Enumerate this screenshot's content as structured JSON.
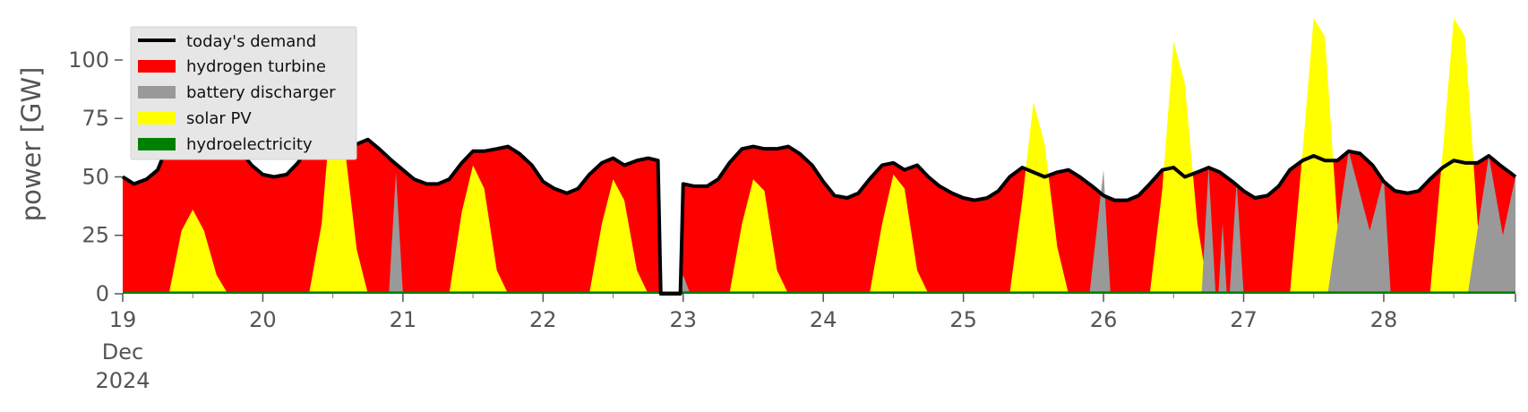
{
  "chart_data": {
    "type": "area",
    "xlabel": "",
    "ylabel": "power [GW]",
    "xlim": [
      19.0,
      28.94
    ],
    "ylim": [
      0,
      118
    ],
    "x_ticks": [
      {
        "x": 19,
        "label": "19"
      },
      {
        "x": 20,
        "label": "20"
      },
      {
        "x": 21,
        "label": "21"
      },
      {
        "x": 22,
        "label": "22"
      },
      {
        "x": 23,
        "label": "23"
      },
      {
        "x": 24,
        "label": "24"
      },
      {
        "x": 25,
        "label": "25"
      },
      {
        "x": 26,
        "label": "26"
      },
      {
        "x": 27,
        "label": "27"
      },
      {
        "x": 28,
        "label": "28"
      }
    ],
    "x_sublabel_month": "Dec",
    "x_sublabel_year": "2024",
    "y_ticks": [
      0,
      25,
      50,
      75,
      100
    ],
    "legend_position": "top-left",
    "grid": false,
    "series": [
      {
        "name": "today's demand",
        "kind": "line",
        "color": "#000000",
        "points": [
          [
            19.0,
            50
          ],
          [
            19.08,
            47
          ],
          [
            19.17,
            49
          ],
          [
            19.25,
            53
          ],
          [
            19.33,
            65
          ],
          [
            19.42,
            70
          ],
          [
            19.5,
            71
          ],
          [
            19.58,
            70
          ],
          [
            19.67,
            68
          ],
          [
            19.75,
            66
          ],
          [
            19.83,
            62
          ],
          [
            19.92,
            55
          ],
          [
            20.0,
            51
          ],
          [
            20.08,
            50
          ],
          [
            20.17,
            51
          ],
          [
            20.25,
            56
          ],
          [
            20.33,
            63
          ],
          [
            20.42,
            68
          ],
          [
            20.5,
            68
          ],
          [
            20.58,
            66
          ],
          [
            20.67,
            64
          ],
          [
            20.75,
            66
          ],
          [
            20.83,
            62
          ],
          [
            20.92,
            57
          ],
          [
            21.0,
            53
          ],
          [
            21.08,
            49
          ],
          [
            21.17,
            47
          ],
          [
            21.25,
            47
          ],
          [
            21.33,
            49
          ],
          [
            21.42,
            56
          ],
          [
            21.5,
            61
          ],
          [
            21.58,
            61
          ],
          [
            21.67,
            62
          ],
          [
            21.75,
            63
          ],
          [
            21.83,
            60
          ],
          [
            21.92,
            55
          ],
          [
            22.0,
            48
          ],
          [
            22.08,
            45
          ],
          [
            22.17,
            43
          ],
          [
            22.25,
            45
          ],
          [
            22.33,
            51
          ],
          [
            22.42,
            56
          ],
          [
            22.5,
            58
          ],
          [
            22.58,
            55
          ],
          [
            22.67,
            57
          ],
          [
            22.75,
            58
          ],
          [
            22.82,
            57
          ],
          [
            22.84,
            0
          ],
          [
            22.98,
            0
          ],
          [
            23.0,
            47
          ],
          [
            23.08,
            46
          ],
          [
            23.17,
            46
          ],
          [
            23.25,
            49
          ],
          [
            23.33,
            56
          ],
          [
            23.42,
            62
          ],
          [
            23.5,
            63
          ],
          [
            23.58,
            62
          ],
          [
            23.67,
            62
          ],
          [
            23.75,
            63
          ],
          [
            23.83,
            60
          ],
          [
            23.92,
            55
          ],
          [
            24.0,
            48
          ],
          [
            24.08,
            42
          ],
          [
            24.17,
            41
          ],
          [
            24.25,
            43
          ],
          [
            24.33,
            49
          ],
          [
            24.42,
            55
          ],
          [
            24.5,
            56
          ],
          [
            24.58,
            53
          ],
          [
            24.67,
            55
          ],
          [
            24.75,
            50
          ],
          [
            24.83,
            46
          ],
          [
            24.92,
            43
          ],
          [
            25.0,
            41
          ],
          [
            25.08,
            40
          ],
          [
            25.17,
            41
          ],
          [
            25.25,
            44
          ],
          [
            25.33,
            50
          ],
          [
            25.42,
            54
          ],
          [
            25.5,
            52
          ],
          [
            25.58,
            50
          ],
          [
            25.67,
            52
          ],
          [
            25.75,
            53
          ],
          [
            25.83,
            50
          ],
          [
            25.92,
            46
          ],
          [
            26.0,
            42
          ],
          [
            26.08,
            40
          ],
          [
            26.17,
            40
          ],
          [
            26.25,
            42
          ],
          [
            26.33,
            47
          ],
          [
            26.42,
            53
          ],
          [
            26.5,
            54
          ],
          [
            26.58,
            50
          ],
          [
            26.67,
            52
          ],
          [
            26.75,
            54
          ],
          [
            26.83,
            52
          ],
          [
            26.92,
            48
          ],
          [
            27.0,
            44
          ],
          [
            27.08,
            41
          ],
          [
            27.17,
            42
          ],
          [
            27.25,
            46
          ],
          [
            27.33,
            53
          ],
          [
            27.42,
            57
          ],
          [
            27.5,
            59
          ],
          [
            27.58,
            57
          ],
          [
            27.67,
            57
          ],
          [
            27.75,
            61
          ],
          [
            27.83,
            60
          ],
          [
            27.92,
            55
          ],
          [
            28.0,
            48
          ],
          [
            28.08,
            44
          ],
          [
            28.17,
            43
          ],
          [
            28.25,
            44
          ],
          [
            28.33,
            49
          ],
          [
            28.42,
            54
          ],
          [
            28.5,
            57
          ],
          [
            28.58,
            56
          ],
          [
            28.67,
            56
          ],
          [
            28.75,
            59
          ],
          [
            28.83,
            55
          ],
          [
            28.92,
            51
          ],
          [
            28.94,
            50
          ]
        ]
      },
      {
        "name": "hydrogen turbine",
        "kind": "area",
        "color": "#ff0000",
        "note_fill": "red fills the remaining stack up to the demand line"
      },
      {
        "name": "battery discharger",
        "kind": "area",
        "color": "#999999",
        "points": [
          [
            20.9,
            0
          ],
          [
            20.95,
            52
          ],
          [
            21.0,
            0
          ],
          [
            22.97,
            0
          ],
          [
            23.0,
            8
          ],
          [
            23.05,
            0
          ],
          [
            25.9,
            0
          ],
          [
            26.0,
            53
          ],
          [
            26.05,
            0
          ],
          [
            26.7,
            0
          ],
          [
            26.75,
            54
          ],
          [
            26.8,
            0
          ],
          [
            26.82,
            0
          ],
          [
            26.85,
            30
          ],
          [
            26.88,
            0
          ],
          [
            26.9,
            0
          ],
          [
            26.95,
            48
          ],
          [
            27.0,
            0
          ],
          [
            27.6,
            0
          ],
          [
            27.75,
            61
          ],
          [
            27.9,
            27
          ],
          [
            28.0,
            50
          ],
          [
            28.05,
            0
          ],
          [
            28.6,
            0
          ],
          [
            28.75,
            59
          ],
          [
            28.85,
            25
          ],
          [
            28.94,
            50
          ]
        ]
      },
      {
        "name": "solar PV",
        "kind": "area",
        "color": "#ffff00",
        "points": [
          [
            19.33,
            0
          ],
          [
            19.42,
            27
          ],
          [
            19.5,
            36
          ],
          [
            19.58,
            27
          ],
          [
            19.67,
            8
          ],
          [
            19.75,
            0
          ],
          [
            20.33,
            0
          ],
          [
            20.42,
            30
          ],
          [
            20.5,
            88
          ],
          [
            20.58,
            65
          ],
          [
            20.67,
            19
          ],
          [
            20.75,
            0
          ],
          [
            21.33,
            0
          ],
          [
            21.42,
            35
          ],
          [
            21.5,
            55
          ],
          [
            21.58,
            45
          ],
          [
            21.67,
            10
          ],
          [
            21.75,
            0
          ],
          [
            22.33,
            0
          ],
          [
            22.42,
            30
          ],
          [
            22.5,
            49
          ],
          [
            22.58,
            40
          ],
          [
            22.67,
            10
          ],
          [
            22.75,
            0
          ],
          [
            23.33,
            0
          ],
          [
            23.42,
            30
          ],
          [
            23.5,
            49
          ],
          [
            23.58,
            44
          ],
          [
            23.67,
            10
          ],
          [
            23.75,
            0
          ],
          [
            24.33,
            0
          ],
          [
            24.42,
            30
          ],
          [
            24.5,
            51
          ],
          [
            24.58,
            45
          ],
          [
            24.67,
            10
          ],
          [
            24.75,
            0
          ],
          [
            25.33,
            0
          ],
          [
            25.42,
            40
          ],
          [
            25.5,
            82
          ],
          [
            25.58,
            64
          ],
          [
            25.67,
            20
          ],
          [
            25.75,
            0
          ],
          [
            26.33,
            0
          ],
          [
            26.42,
            45
          ],
          [
            26.5,
            108
          ],
          [
            26.58,
            90
          ],
          [
            26.67,
            30
          ],
          [
            26.75,
            0
          ],
          [
            27.33,
            0
          ],
          [
            27.42,
            60
          ],
          [
            27.5,
            130
          ],
          [
            27.58,
            110
          ],
          [
            27.67,
            30
          ],
          [
            27.75,
            0
          ],
          [
            28.33,
            0
          ],
          [
            28.42,
            60
          ],
          [
            28.5,
            130
          ],
          [
            28.58,
            110
          ],
          [
            28.67,
            30
          ],
          [
            28.75,
            0
          ]
        ]
      },
      {
        "name": "hydroelectricity",
        "kind": "area",
        "color": "#008000",
        "constant_value": 1
      }
    ]
  }
}
